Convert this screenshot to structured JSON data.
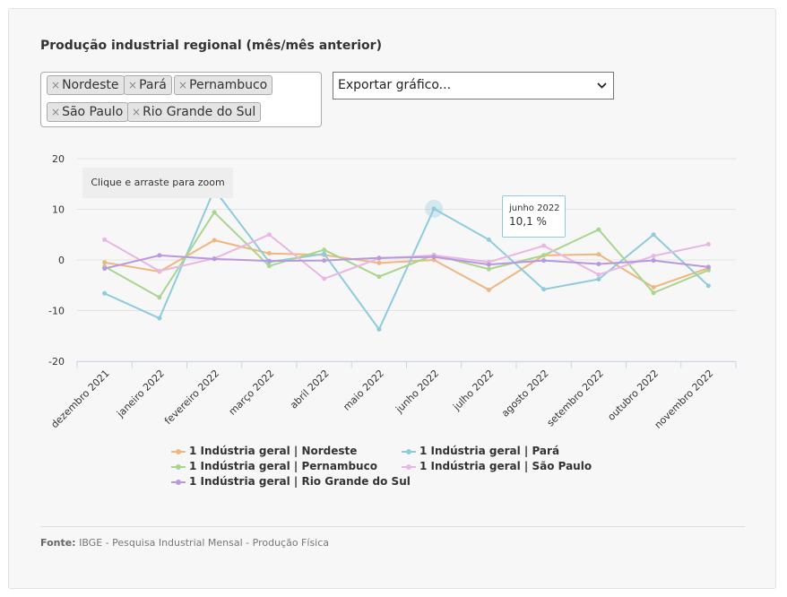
{
  "title": "Produção industrial regional (mês/mês anterior)",
  "selected_tags": [
    "Nordeste",
    "Pará",
    "Pernambuco",
    "São Paulo",
    "Rio Grande do Sul"
  ],
  "tag_remove_glyph": "×",
  "export_select": {
    "value": "Exportar gráfico..."
  },
  "zoom_hint": "Clique e arraste para zoom",
  "tooltip": {
    "label": "junho 2022",
    "value": "10,1 %"
  },
  "source": {
    "label": "Fonte:",
    "text": "IBGE - Pesquisa Industrial Mensal - Produção Física"
  },
  "chart_data": {
    "type": "line",
    "categories": [
      "dezembro 2021",
      "janeiro 2022",
      "fevereiro 2022",
      "março 2022",
      "abril 2022",
      "maio 2022",
      "junho 2022",
      "julho 2022",
      "agosto 2022",
      "setembro 2022",
      "outubro 2022",
      "novembro 2022"
    ],
    "ylim": [
      -20,
      20
    ],
    "yticks": [
      20,
      10,
      0,
      -10,
      -20
    ],
    "grid": true,
    "legend_position": "bottom",
    "series": [
      {
        "name": "1 Indústria geral | Nordeste",
        "color": "#f0b67f",
        "values": [
          -0.5,
          -2.3,
          3.9,
          1.3,
          1.0,
          -0.6,
          0.0,
          -5.9,
          0.9,
          1.1,
          -5.4,
          -1.6
        ]
      },
      {
        "name": "1 Indústria geral | Pará",
        "color": "#8ecbdc",
        "values": [
          -6.6,
          -11.5,
          13.9,
          -0.4,
          1.2,
          -13.7,
          10.1,
          4.0,
          -5.8,
          -3.8,
          5.0,
          -5.1
        ]
      },
      {
        "name": "1 Indústria geral | Pernambuco",
        "color": "#a9d58f",
        "values": [
          -1.3,
          -7.4,
          9.4,
          -1.2,
          2.0,
          -3.3,
          1.0,
          -1.8,
          0.9,
          6.0,
          -6.5,
          -2.0
        ]
      },
      {
        "name": "1 Indústria geral | São Paulo",
        "color": "#e8b7e4",
        "values": [
          4.0,
          -2.2,
          0.3,
          5.0,
          -3.7,
          0.3,
          0.9,
          -0.4,
          2.8,
          -2.9,
          0.8,
          3.1
        ]
      },
      {
        "name": "1 Indústria geral | Rio Grande do Sul",
        "color": "#b998dd",
        "values": [
          -1.7,
          0.9,
          0.2,
          -0.2,
          -0.1,
          0.4,
          0.6,
          -0.9,
          -0.1,
          -0.8,
          -0.1,
          -1.4
        ]
      }
    ],
    "highlighted_point": {
      "category": "junho 2022",
      "value": 10.1
    }
  }
}
